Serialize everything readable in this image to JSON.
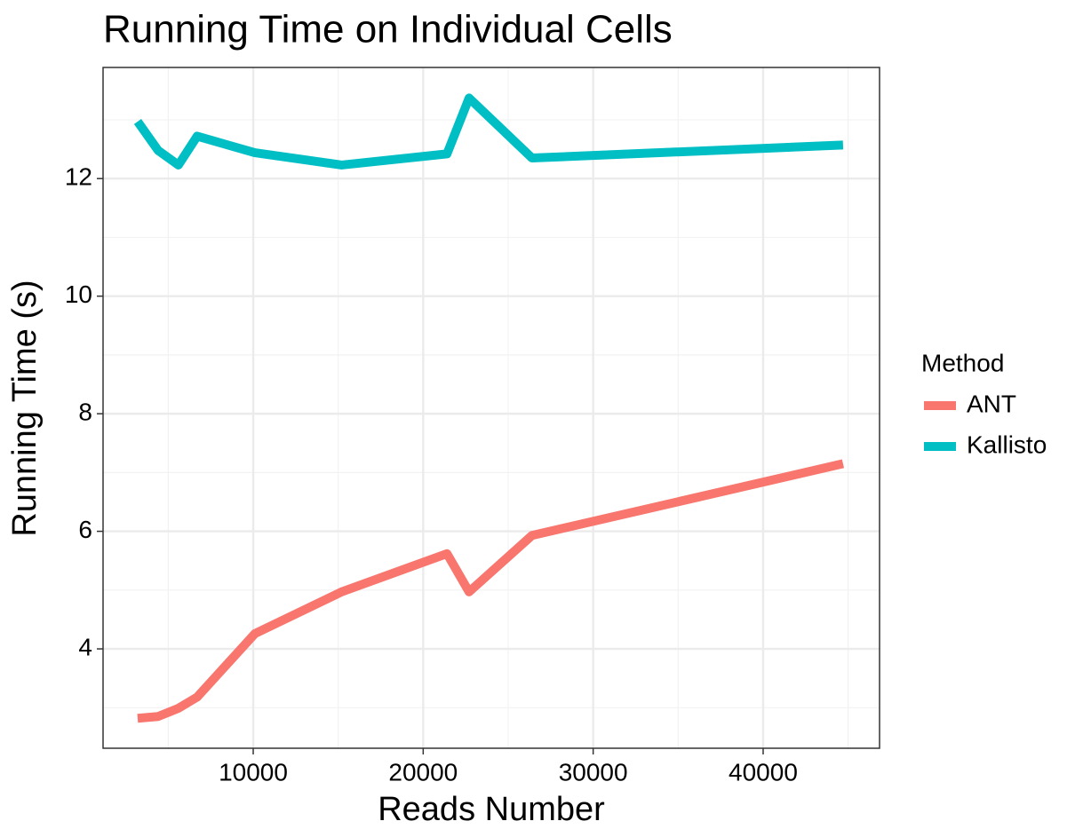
{
  "chart_data": {
    "type": "line",
    "title": "Running Time on Individual Cells",
    "x_label": "Reads Number",
    "y_label": "Running Time (s)",
    "x": [
      3200,
      4400,
      5600,
      6700,
      10100,
      15200,
      21400,
      22700,
      26400,
      44700
    ],
    "series": [
      {
        "name": "ANT",
        "color": "#F8766D",
        "values": [
          2.82,
          2.85,
          2.99,
          3.18,
          4.26,
          4.97,
          5.62,
          4.97,
          5.93,
          7.15
        ]
      },
      {
        "name": "Kallisto",
        "color": "#00BFC4",
        "values": [
          12.97,
          12.48,
          12.23,
          12.72,
          12.44,
          12.23,
          12.42,
          13.37,
          12.35,
          12.57
        ]
      }
    ],
    "xlim": [
      1166,
      46848
    ],
    "xticks": [
      10000,
      20000,
      30000,
      40000
    ],
    "ylim": [
      2.31,
      13.89
    ],
    "yticks": [
      4,
      6,
      8,
      10,
      12
    ],
    "grid": true,
    "legend_title": "Method",
    "legend": "right"
  }
}
